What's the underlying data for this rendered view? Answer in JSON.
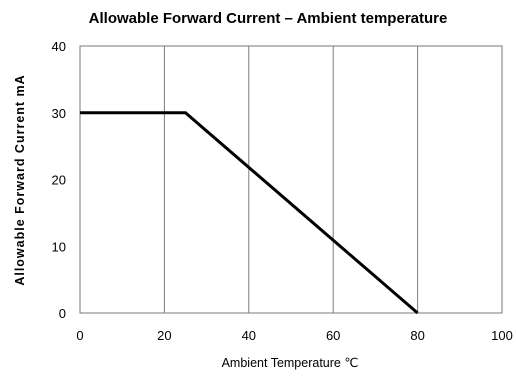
{
  "chart_data": {
    "type": "line",
    "title": "Allowable Forward Current – Ambient temperature",
    "xlabel": "Ambient Temperature  ℃",
    "ylabel": "Allowable Forward Current  mA",
    "xlim": [
      0,
      100
    ],
    "ylim": [
      0,
      40
    ],
    "x_ticks": [
      0,
      20,
      40,
      60,
      80,
      100
    ],
    "y_ticks": [
      0,
      10,
      20,
      30,
      40
    ],
    "grid": "vertical",
    "legend": "none",
    "series": [
      {
        "color": "#000000",
        "x": [
          0,
          25,
          80
        ],
        "y": [
          30,
          30,
          0
        ]
      }
    ]
  }
}
